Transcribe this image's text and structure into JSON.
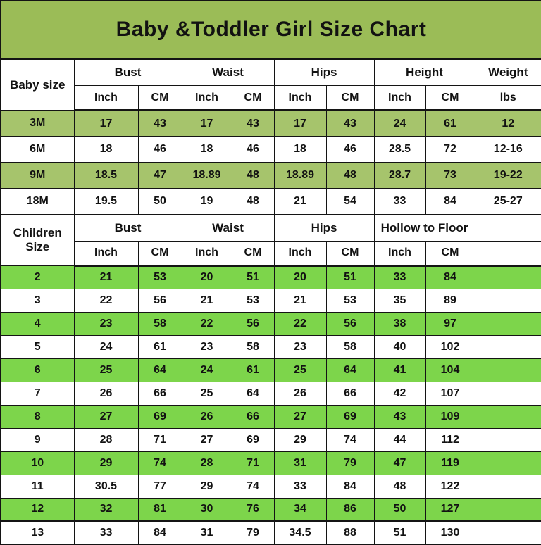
{
  "title": "Baby &Toddler Girl Size Chart",
  "colors": {
    "title_bg": "#9bbc57",
    "baby_row_green": "#a6c46c",
    "children_row_green": "#7dd54b",
    "border": "#141414",
    "text": "#121212"
  },
  "chart_data": {
    "type": "table",
    "title": "Baby &Toddler Girl Size Chart",
    "tables": [
      {
        "name": "baby-size-table",
        "corner_label": "Baby size",
        "col_groups": [
          {
            "label": "Bust",
            "sub": [
              "Inch",
              "CM"
            ]
          },
          {
            "label": "Waist",
            "sub": [
              "Inch",
              "CM"
            ]
          },
          {
            "label": "Hips",
            "sub": [
              "Inch",
              "CM"
            ]
          },
          {
            "label": "Height",
            "sub": [
              "Inch",
              "CM"
            ]
          },
          {
            "label": "Weight",
            "sub": [
              "lbs"
            ]
          }
        ],
        "rows": [
          {
            "size": "3M",
            "values": [
              "17",
              "43",
              "17",
              "43",
              "17",
              "43",
              "24",
              "61",
              "12"
            ],
            "green": true
          },
          {
            "size": "6M",
            "values": [
              "18",
              "46",
              "18",
              "46",
              "18",
              "46",
              "28.5",
              "72",
              "12-16"
            ],
            "green": false
          },
          {
            "size": "9M",
            "values": [
              "18.5",
              "47",
              "18.89",
              "48",
              "18.89",
              "48",
              "28.7",
              "73",
              "19-22"
            ],
            "green": true
          },
          {
            "size": "18M",
            "values": [
              "19.5",
              "50",
              "19",
              "48",
              "21",
              "54",
              "33",
              "84",
              "25-27"
            ],
            "green": false
          }
        ]
      },
      {
        "name": "children-size-table",
        "corner_label": "Children Size",
        "col_groups": [
          {
            "label": "Bust",
            "sub": [
              "Inch",
              "CM"
            ]
          },
          {
            "label": "Waist",
            "sub": [
              "Inch",
              "CM"
            ]
          },
          {
            "label": "Hips",
            "sub": [
              "Inch",
              "CM"
            ]
          },
          {
            "label": "Hollow to Floor",
            "sub": [
              "Inch",
              "CM"
            ]
          }
        ],
        "rows": [
          {
            "size": "2",
            "values": [
              "21",
              "53",
              "20",
              "51",
              "20",
              "51",
              "33",
              "84"
            ],
            "green": true
          },
          {
            "size": "3",
            "values": [
              "22",
              "56",
              "21",
              "53",
              "21",
              "53",
              "35",
              "89"
            ],
            "green": false
          },
          {
            "size": "4",
            "values": [
              "23",
              "58",
              "22",
              "56",
              "22",
              "56",
              "38",
              "97"
            ],
            "green": true
          },
          {
            "size": "5",
            "values": [
              "24",
              "61",
              "23",
              "58",
              "23",
              "58",
              "40",
              "102"
            ],
            "green": false
          },
          {
            "size": "6",
            "values": [
              "25",
              "64",
              "24",
              "61",
              "25",
              "64",
              "41",
              "104"
            ],
            "green": true
          },
          {
            "size": "7",
            "values": [
              "26",
              "66",
              "25",
              "64",
              "26",
              "66",
              "42",
              "107"
            ],
            "green": false
          },
          {
            "size": "8",
            "values": [
              "27",
              "69",
              "26",
              "66",
              "27",
              "69",
              "43",
              "109"
            ],
            "green": true
          },
          {
            "size": "9",
            "values": [
              "28",
              "71",
              "27",
              "69",
              "29",
              "74",
              "44",
              "112"
            ],
            "green": false
          },
          {
            "size": "10",
            "values": [
              "29",
              "74",
              "28",
              "71",
              "31",
              "79",
              "47",
              "119"
            ],
            "green": true
          },
          {
            "size": "11",
            "values": [
              "30.5",
              "77",
              "29",
              "74",
              "33",
              "84",
              "48",
              "122"
            ],
            "green": false
          },
          {
            "size": "12",
            "values": [
              "32",
              "81",
              "30",
              "76",
              "34",
              "86",
              "50",
              "127"
            ],
            "green": true
          },
          {
            "size": "13",
            "values": [
              "33",
              "84",
              "31",
              "79",
              "34.5",
              "88",
              "51",
              "130"
            ],
            "green": false
          }
        ]
      }
    ]
  }
}
